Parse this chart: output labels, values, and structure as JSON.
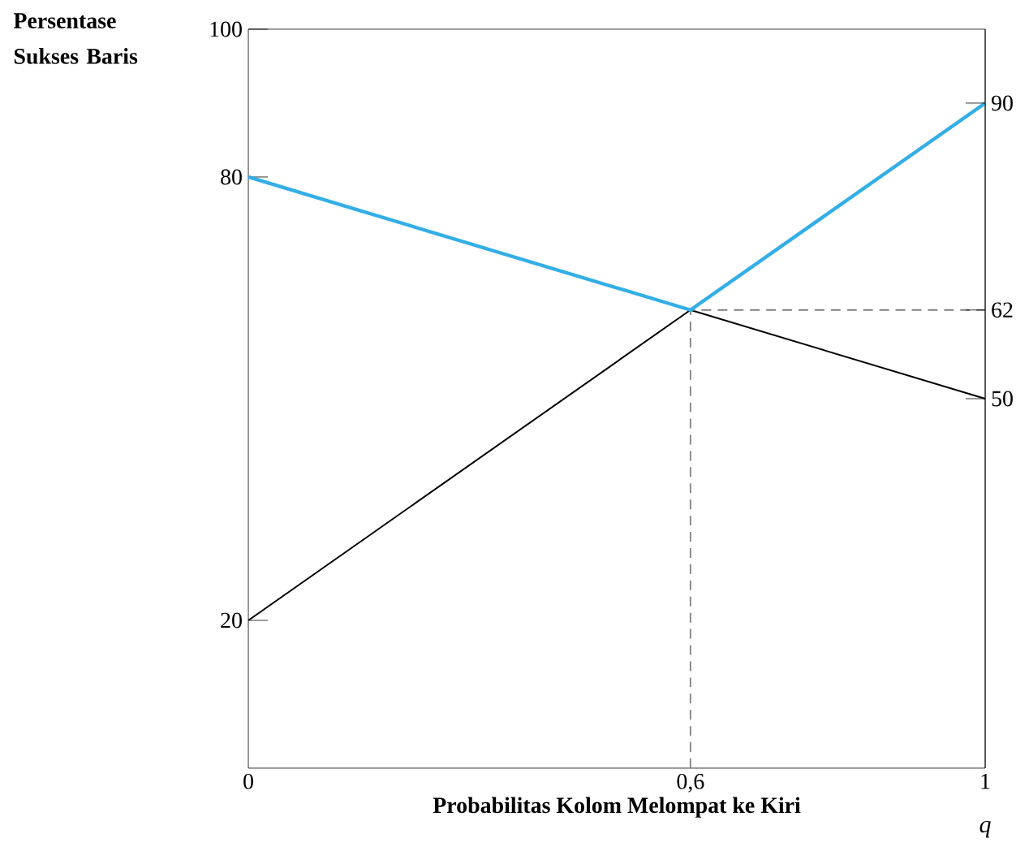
{
  "chart_data": {
    "type": "line",
    "ylabel": "Persentase Sukses Baris",
    "xlabel": "Probabilitas Kolom Melompat ke Kiri",
    "annotations": [
      "q"
    ],
    "xlim": [
      0,
      1
    ],
    "xticks": [
      0,
      {
        "value": 0.6,
        "label": "0,6"
      },
      1
    ],
    "ylim": [
      0,
      100
    ],
    "yticks": [
      20,
      80,
      100
    ],
    "y2lim": [
      0,
      100
    ],
    "y2ticks": [
      50,
      62,
      90
    ],
    "series": [
      {
        "color": "#000000",
        "x": [
          0,
          0.6,
          1
        ],
        "values": [
          20,
          62,
          50
        ],
        "line_style": "solid"
      },
      {
        "color": "#808080",
        "x": [
          0.6,
          0.6,
          1
        ],
        "values": [
          0,
          62,
          62
        ],
        "line_style": "dashed"
      },
      {
        "color": "#33aee6",
        "x": [
          0,
          0.6,
          1
        ],
        "values": [
          80,
          62,
          90
        ],
        "line_style": "solid"
      }
    ]
  }
}
